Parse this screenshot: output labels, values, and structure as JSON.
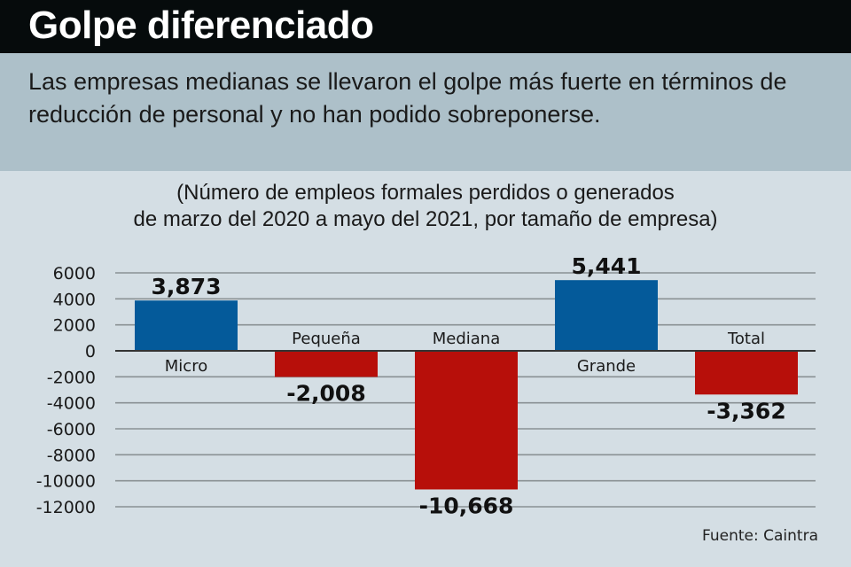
{
  "header": {
    "title": "Golpe diferenciado"
  },
  "intro": {
    "text": "Las empresas medianas se llevaron el golpe más fuerte en términos de reducción de personal y no han podido sobreponerse."
  },
  "subtitle": {
    "line1": "(Número de empleos formales perdidos o generados",
    "line2": "de marzo del 2020 a mayo del 2021, por tamaño de empresa)"
  },
  "source": "Fuente: Caintra",
  "colors": {
    "positive": "#045a9a",
    "negative": "#b70f0a",
    "grid": "#8a9194",
    "zero_line": "#333333"
  },
  "chart_data": {
    "type": "bar",
    "title": "Golpe diferenciado",
    "subtitle": "(Número de empleos formales perdidos o generados de marzo del 2020 a mayo del 2021, por tamaño de empresa)",
    "xlabel": "",
    "ylabel": "",
    "categories": [
      "Micro",
      "Pequeña",
      "Mediana",
      "Grande",
      "Total"
    ],
    "values": [
      3873,
      -2008,
      -10668,
      5441,
      -3362
    ],
    "value_labels": [
      "3,873",
      "-2,008",
      "-10,668",
      "5,441",
      "-3,362"
    ],
    "ylim": [
      -12000,
      6000
    ],
    "yticks": [
      6000,
      4000,
      2000,
      0,
      -2000,
      -4000,
      -6000,
      -8000,
      -10000,
      -12000
    ],
    "ytick_labels": [
      "6000",
      "4000",
      "2000",
      "0",
      "-2000",
      "-4000",
      "-6000",
      "-8000",
      "-10000",
      "-12000"
    ],
    "grid": true,
    "legend": "none"
  }
}
